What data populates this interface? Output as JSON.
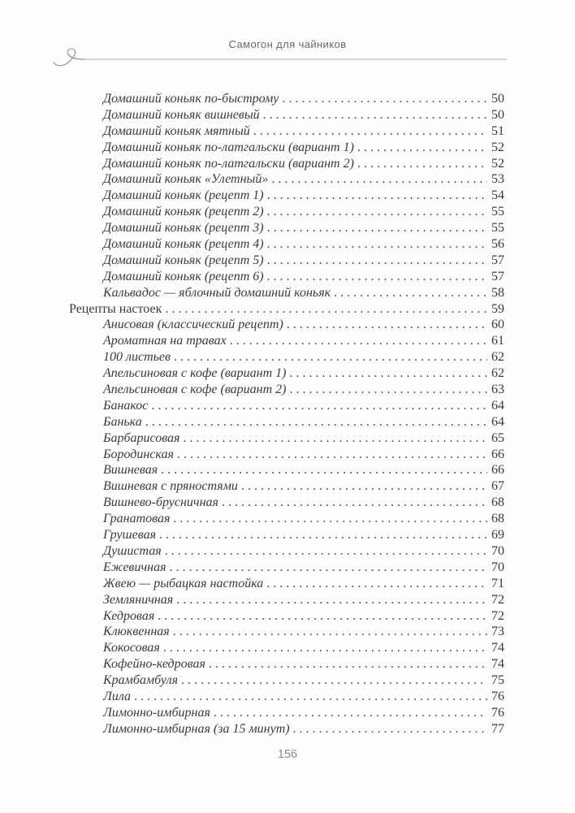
{
  "page": {
    "running_header": "Самогон для чайников",
    "footer_page_number": "156"
  },
  "icons": {
    "header_flourish": "flourish-icon"
  },
  "colors": {
    "text": "#3a3a3a",
    "header_text": "#696969",
    "rule": "#a7a7a7",
    "footer_text": "#8a8a8a",
    "page_background": "#fefefe"
  },
  "toc": {
    "entries": [
      {
        "level": 2,
        "title": "Домашний коньяк по-быстрому",
        "page": "50"
      },
      {
        "level": 2,
        "title": "Домашний коньяк вишневый",
        "page": "50"
      },
      {
        "level": 2,
        "title": "Домашний коньяк мятный",
        "page": "51"
      },
      {
        "level": 2,
        "title": "Домашний коньяк по-латгальски (вариант 1)",
        "page": "52"
      },
      {
        "level": 2,
        "title": "Домашний коньяк по-латгальски (вариант 2)",
        "page": "52"
      },
      {
        "level": 2,
        "title": "Домашний коньяк «Улетный»",
        "page": "53"
      },
      {
        "level": 2,
        "title": "Домашний коньяк (рецепт 1)",
        "page": "54"
      },
      {
        "level": 2,
        "title": "Домашний коньяк (рецепт 2)",
        "page": "55"
      },
      {
        "level": 2,
        "title": "Домашний коньяк (рецепт 3)",
        "page": "55"
      },
      {
        "level": 2,
        "title": "Домашний коньяк (рецепт 4)",
        "page": "56"
      },
      {
        "level": 2,
        "title": "Домашний коньяк (рецепт 5)",
        "page": "57"
      },
      {
        "level": 2,
        "title": "Домашний коньяк (рецепт 6)",
        "page": "57"
      },
      {
        "level": 2,
        "title": "Кальвадос — яблочный домашний коньяк",
        "page": "58"
      },
      {
        "level": 1,
        "title": "Рецепты настоек",
        "page": "59"
      },
      {
        "level": 2,
        "title": "Анисовая (классический рецепт)",
        "page": "60"
      },
      {
        "level": 2,
        "title": "Ароматная на травах",
        "page": "61"
      },
      {
        "level": 2,
        "title": "100 листьев",
        "page": "62"
      },
      {
        "level": 2,
        "title": "Апельсиновая с кофе (вариант 1)",
        "page": "62"
      },
      {
        "level": 2,
        "title": "Апельсиновая с кофе (вариант 2)",
        "page": "63"
      },
      {
        "level": 2,
        "title": "Банакос",
        "page": "64"
      },
      {
        "level": 2,
        "title": "Банька",
        "page": "64"
      },
      {
        "level": 2,
        "title": "Барбарисовая",
        "page": "65"
      },
      {
        "level": 2,
        "title": "Бородинская",
        "page": "66"
      },
      {
        "level": 2,
        "title": "Вишневая",
        "page": "66"
      },
      {
        "level": 2,
        "title": "Вишневая с пряностями",
        "page": "67"
      },
      {
        "level": 2,
        "title": "Вишнево-брусничная",
        "page": "68"
      },
      {
        "level": 2,
        "title": "Гранатовая",
        "page": "68"
      },
      {
        "level": 2,
        "title": "Грушевая",
        "page": "69"
      },
      {
        "level": 2,
        "title": "Душистая",
        "page": "70"
      },
      {
        "level": 2,
        "title": "Ежевичная",
        "page": "70"
      },
      {
        "level": 2,
        "title": "Жвею — рыбацкая настойка",
        "page": "71"
      },
      {
        "level": 2,
        "title": "Земляничная",
        "page": "72"
      },
      {
        "level": 2,
        "title": "Кедровая",
        "page": "72"
      },
      {
        "level": 2,
        "title": "Клюквенная",
        "page": "73"
      },
      {
        "level": 2,
        "title": "Кокосовая",
        "page": "74"
      },
      {
        "level": 2,
        "title": "Кофейно-кедровая",
        "page": "74"
      },
      {
        "level": 2,
        "title": "Крамбамбуля",
        "page": "75"
      },
      {
        "level": 2,
        "title": "Лила",
        "page": "76"
      },
      {
        "level": 2,
        "title": "Лимонно-имбирная",
        "page": "76"
      },
      {
        "level": 2,
        "title": "Лимонно-имбирная (за 15 минут)",
        "page": "77"
      }
    ]
  }
}
